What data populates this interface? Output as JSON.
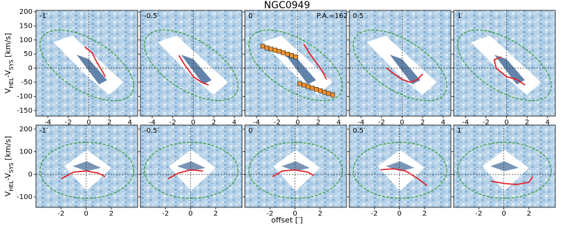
{
  "title": "NGC0949",
  "x_label": "offset [′]",
  "y_label": [
    "V",
    "HEL",
    "-V",
    "SYS",
    " [km/s]"
  ],
  "chart_data": [
    {
      "type": "line",
      "label": "-1′",
      "xlim": [
        -5.15,
        4.75
      ],
      "ylim": [
        -170,
        205
      ],
      "xticks": [
        -4,
        -2,
        0,
        2,
        4
      ],
      "yticks": [
        -150,
        -100,
        -50,
        0,
        50,
        100,
        150,
        200
      ],
      "hline": 0,
      "vline": 0,
      "series": [
        {
          "color": "#e3222a",
          "x": [
            -0.4,
            0.3,
            0.8,
            1.3,
            1.6
          ],
          "values": [
            75,
            55,
            20,
            -10,
            -30
          ]
        }
      ]
    },
    {
      "type": "line",
      "label": "-0.5′",
      "xlim": [
        -5.15,
        4.75
      ],
      "ylim": [
        -170,
        205
      ],
      "xticks": [
        -4,
        -2,
        0,
        2,
        4
      ],
      "yticks": [
        -150,
        -100,
        -50,
        0,
        50,
        100,
        150,
        200
      ],
      "hline": 0,
      "vline": 0,
      "series": [
        {
          "color": "#e3222a",
          "x": [
            -1.4,
            -0.8,
            0,
            0.8,
            1.5
          ],
          "values": [
            45,
            10,
            -30,
            -50,
            -60
          ]
        }
      ]
    },
    {
      "type": "line",
      "label": "0′",
      "annotation": "P.A.=162",
      "xlim": [
        -5.15,
        4.75
      ],
      "ylim": [
        -170,
        205
      ],
      "xticks": [
        -4,
        -2,
        0,
        2,
        4
      ],
      "yticks": [
        -150,
        -100,
        -50,
        0,
        50,
        100,
        150,
        200
      ],
      "hline": 0,
      "vline": 0,
      "series": [
        {
          "color": "#e3222a",
          "x": [
            0.6,
            1.2,
            1.8,
            2.4,
            2.8
          ],
          "values": [
            85,
            50,
            20,
            -10,
            -40
          ]
        },
        {
          "color": "#f0922e",
          "marker": "square",
          "x": [
            -3.4,
            -3.0,
            -2.6,
            -2.2,
            -1.8,
            -1.4,
            -1.0,
            -0.6,
            -0.2,
            0.2,
            0.6,
            1.0,
            1.4,
            1.8,
            2.2,
            2.6,
            3.0,
            3.4
          ],
          "values": [
            78,
            72,
            68,
            64,
            60,
            55,
            50,
            45,
            40,
            -55,
            -60,
            -65,
            -70,
            -75,
            -80,
            -85,
            -90,
            -95
          ]
        }
      ]
    },
    {
      "type": "line",
      "label": "0.5′",
      "xlim": [
        -5.15,
        4.75
      ],
      "ylim": [
        -170,
        205
      ],
      "xticks": [
        -4,
        -2,
        0,
        2,
        4
      ],
      "yticks": [
        -150,
        -100,
        -50,
        0,
        50,
        100,
        150,
        200
      ],
      "hline": 0,
      "vline": 0,
      "series": [
        {
          "color": "#e3222a",
          "x": [
            -1.5,
            -0.8,
            0,
            0.8,
            1.5,
            2.0
          ],
          "values": [
            0,
            -20,
            -40,
            -50,
            -40,
            -20
          ]
        }
      ]
    },
    {
      "type": "line",
      "label": "1′",
      "xlim": [
        -5.15,
        4.75
      ],
      "ylim": [
        -170,
        205
      ],
      "xticks": [
        -4,
        -2,
        0,
        2,
        4
      ],
      "yticks": [
        -150,
        -100,
        -50,
        0,
        50,
        100,
        150,
        200
      ],
      "hline": 0,
      "vline": 0,
      "series": [
        {
          "color": "#e3222a",
          "x": [
            -0.5,
            -1.2,
            -1,
            0,
            1,
            1.8
          ],
          "values": [
            40,
            30,
            0,
            -30,
            -40,
            -60
          ]
        }
      ]
    },
    {
      "type": "line",
      "label": "-1′",
      "xlim": [
        -4,
        4.1
      ],
      "ylim": [
        -146,
        218
      ],
      "xticks": [
        -2,
        0,
        2
      ],
      "yticks": [
        -100,
        0,
        100,
        200
      ],
      "hline": 0,
      "vline": 0,
      "series": [
        {
          "color": "#e3222a",
          "x": [
            -2,
            -1,
            0,
            1,
            1.5
          ],
          "values": [
            -20,
            10,
            15,
            5,
            -10
          ]
        }
      ]
    },
    {
      "type": "line",
      "label": "-0.5′",
      "xlim": [
        -4,
        4.1
      ],
      "ylim": [
        -146,
        218
      ],
      "xticks": [
        -2,
        0,
        2
      ],
      "yticks": [
        -100,
        0,
        100,
        200
      ],
      "hline": 0,
      "vline": 0,
      "series": [
        {
          "color": "#e3222a",
          "x": [
            -1.8,
            -1,
            0,
            1
          ],
          "values": [
            -20,
            5,
            20,
            15
          ]
        }
      ]
    },
    {
      "type": "line",
      "label": "0′",
      "xlim": [
        -4,
        4.1
      ],
      "ylim": [
        -146,
        218
      ],
      "xticks": [
        -2,
        0,
        2
      ],
      "yticks": [
        -100,
        0,
        100,
        200
      ],
      "hline": 0,
      "vline": 0,
      "series": [
        {
          "color": "#e3222a",
          "x": [
            -1.8,
            -1,
            0,
            1,
            1.5
          ],
          "values": [
            -10,
            15,
            20,
            10,
            -5
          ]
        }
      ]
    },
    {
      "type": "line",
      "label": "0.5′",
      "xlim": [
        -4,
        4.1
      ],
      "ylim": [
        -146,
        218
      ],
      "xticks": [
        -2,
        0,
        2
      ],
      "yticks": [
        -100,
        0,
        100,
        200
      ],
      "hline": 0,
      "vline": 0,
      "series": [
        {
          "color": "#e3222a",
          "x": [
            -1.5,
            -0.5,
            0.5,
            1.5,
            2.2
          ],
          "values": [
            20,
            25,
            15,
            -20,
            -50
          ]
        }
      ]
    },
    {
      "type": "line",
      "label": "1′",
      "xlim": [
        -4,
        4.1
      ],
      "ylim": [
        -146,
        218
      ],
      "xticks": [
        -2,
        0,
        2
      ],
      "yticks": [
        -100,
        0,
        100,
        200
      ],
      "hline": 0,
      "vline": 0,
      "series": [
        {
          "color": "#e3222a",
          "x": [
            -1,
            0,
            1,
            2,
            2.3
          ],
          "values": [
            -30,
            -40,
            -45,
            -35,
            -10
          ]
        }
      ]
    }
  ]
}
